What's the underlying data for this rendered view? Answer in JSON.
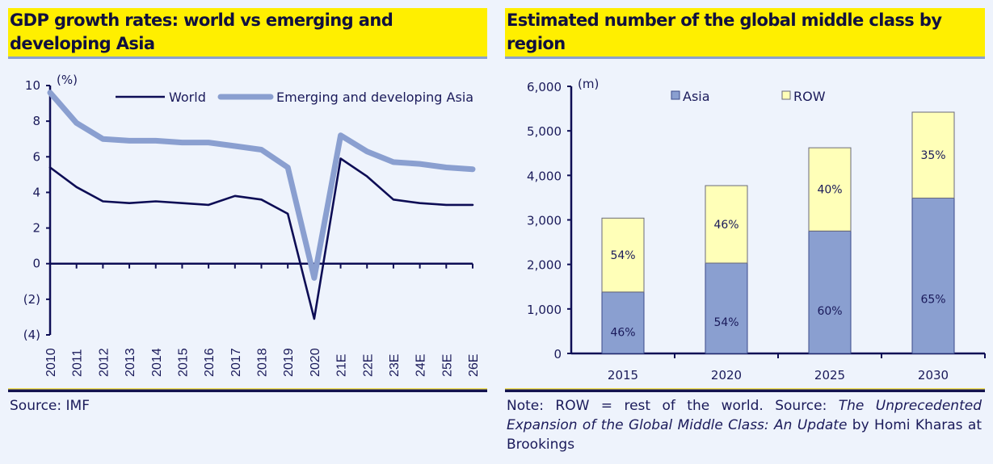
{
  "chart_data": [
    {
      "type": "line",
      "title": "GDP growth rates: world vs emerging and developing Asia",
      "ylabel": "(%)",
      "xlabel": "",
      "ylim": [
        -4,
        10
      ],
      "yticks": [
        10,
        8,
        6,
        4,
        2,
        0,
        -2,
        -4
      ],
      "ytick_labels": [
        "10",
        "8",
        "6",
        "4",
        "2",
        "0",
        "(2)",
        "(4)"
      ],
      "x": [
        "2010",
        "2011",
        "2012",
        "2013",
        "2014",
        "2015",
        "2016",
        "2017",
        "2018",
        "2019",
        "2020",
        "21E",
        "22E",
        "23E",
        "24E",
        "25E",
        "26E"
      ],
      "series": [
        {
          "name": "World",
          "color": "#0d0d55",
          "values": [
            5.4,
            4.3,
            3.5,
            3.4,
            3.5,
            3.4,
            3.3,
            3.8,
            3.6,
            2.8,
            -3.1,
            5.9,
            4.9,
            3.6,
            3.4,
            3.3,
            3.3
          ]
        },
        {
          "name": "Emerging and developing Asia",
          "color": "#8a9fd0",
          "values": [
            9.6,
            7.9,
            7.0,
            6.9,
            6.9,
            6.8,
            6.8,
            6.6,
            6.4,
            5.4,
            -0.8,
            7.2,
            6.3,
            5.7,
            5.6,
            5.4,
            5.3
          ]
        }
      ],
      "legend": "top-right",
      "grid": false,
      "source": "Source: IMF"
    },
    {
      "type": "bar",
      "stacked": true,
      "title": "Estimated number of the global middle class by region",
      "ylabel": "(m)",
      "xlabel": "",
      "ylim": [
        0,
        6000
      ],
      "yticks": [
        0,
        1000,
        2000,
        3000,
        4000,
        5000,
        6000
      ],
      "ytick_labels": [
        "0",
        "1,000",
        "2,000",
        "3,000",
        "4,000",
        "5,000",
        "6,000"
      ],
      "categories": [
        "2015",
        "2020",
        "2025",
        "2030"
      ],
      "series": [
        {
          "name": "Asia",
          "color": "#8a9fd0",
          "values": [
            1380,
            2030,
            2750,
            3490
          ],
          "labels": [
            "46%",
            "54%",
            "60%",
            "65%"
          ]
        },
        {
          "name": "ROW",
          "color": "#ffffb8",
          "values": [
            1660,
            1740,
            1870,
            1930
          ],
          "labels": [
            "54%",
            "46%",
            "40%",
            "35%"
          ]
        }
      ],
      "legend": "top",
      "grid": false,
      "note": {
        "prefix": "Note: ROW = rest of the world. Source: ",
        "italic": "The Unprecedented Expansion of the Global Middle Class: An Update",
        "suffix": " by Homi Kharas at Brookings"
      }
    }
  ]
}
